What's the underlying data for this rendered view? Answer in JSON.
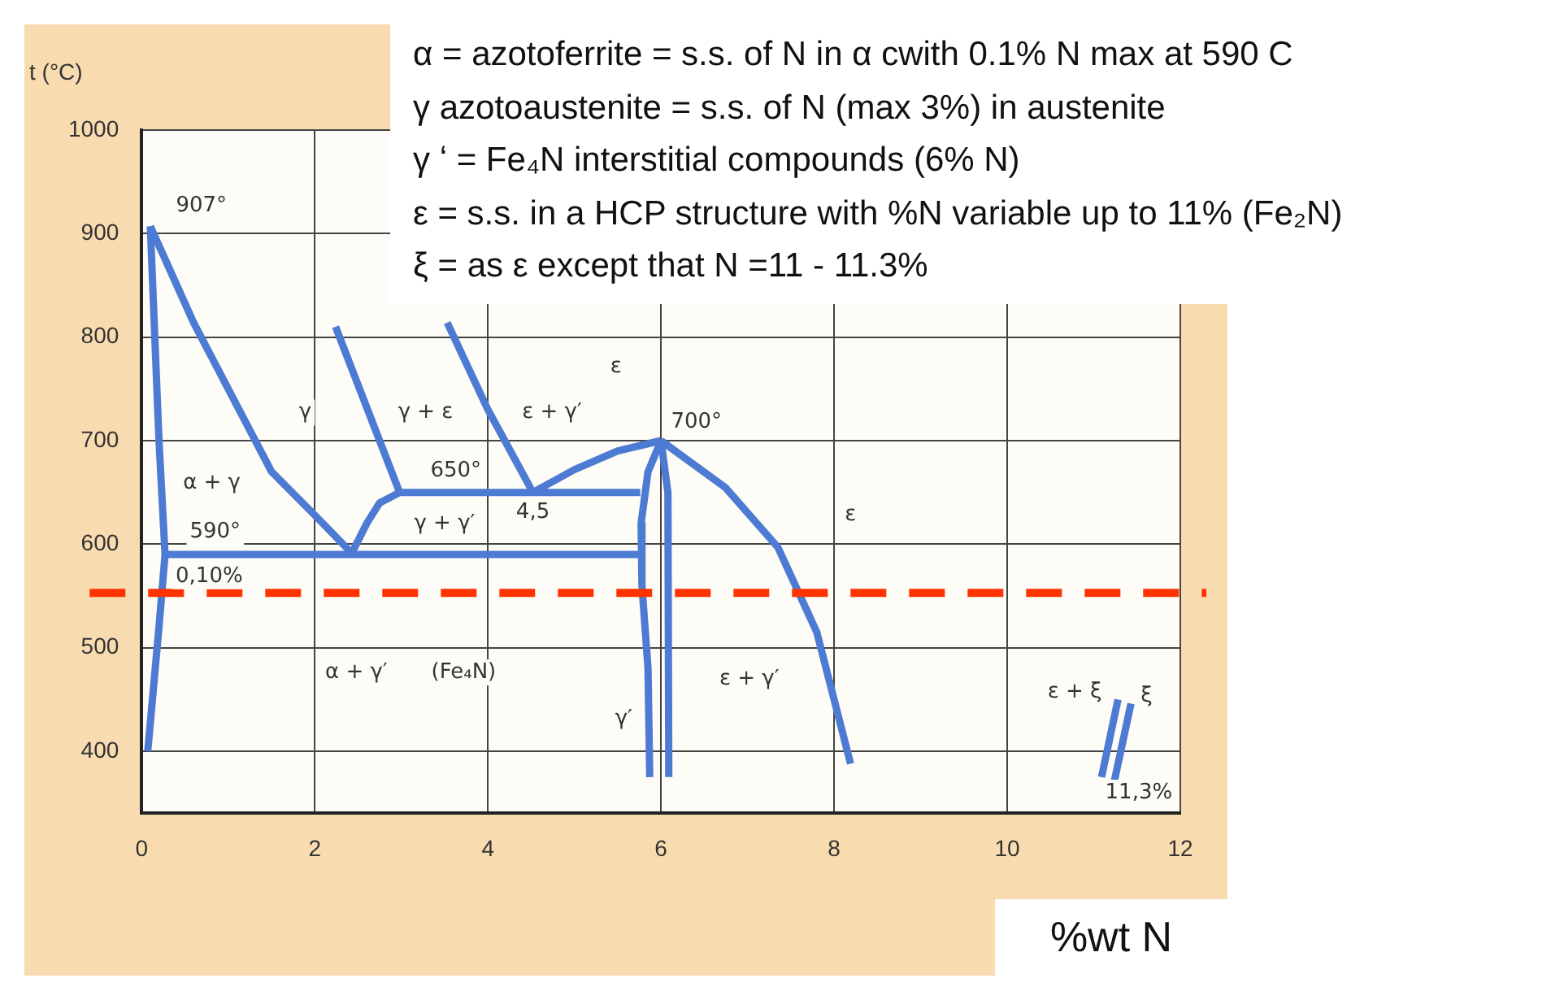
{
  "chart_data": {
    "type": "line",
    "xlabel": "%wt N",
    "ylabel": "t (°C)",
    "xlim": [
      0,
      12
    ],
    "ylim": [
      340,
      1000
    ],
    "xticks": [
      0,
      2,
      4,
      6,
      8,
      10,
      12
    ],
    "yticks": [
      400,
      500,
      600,
      700,
      800,
      900,
      1000
    ],
    "grid": true,
    "marker": "none",
    "line_style": "solid",
    "series": [
      {
        "color": "#4d7bd3",
        "x": [
          0.07,
          0.2,
          0.27,
          0.2,
          0.1
        ],
        "values": [
          400,
          520,
          590,
          700,
          907
        ]
      },
      {
        "color": "#4d7bd3",
        "x": [
          0.1,
          0.6,
          1.0,
          1.5,
          2.0,
          2.42
        ],
        "values": [
          907,
          814,
          750,
          670,
          628,
          592
        ]
      },
      {
        "color": "#4d7bd3",
        "x": [
          0.27,
          5.76
        ],
        "values": [
          590,
          590
        ]
      },
      {
        "color": "#4d7bd3",
        "x": [
          2.42,
          2.6,
          2.75,
          2.98
        ],
        "values": [
          590,
          620,
          640,
          650
        ]
      },
      {
        "color": "#4d7bd3",
        "x": [
          2.24,
          2.98
        ],
        "values": [
          810,
          650
        ]
      },
      {
        "color": "#4d7bd3",
        "x": [
          2.98,
          5.76
        ],
        "values": [
          650,
          650
        ]
      },
      {
        "color": "#4d7bd3",
        "x": [
          3.53,
          4.0,
          4.52
        ],
        "values": [
          814,
          730,
          650
        ]
      },
      {
        "color": "#4d7bd3",
        "x": [
          4.52,
          5.0,
          5.5,
          6.0
        ],
        "values": [
          650,
          672,
          690,
          700
        ]
      },
      {
        "color": "#4d7bd3",
        "x": [
          6.0,
          5.85,
          5.77,
          5.78,
          5.85,
          5.87
        ],
        "values": [
          700,
          670,
          620,
          560,
          480,
          375
        ]
      },
      {
        "color": "#4d7bd3",
        "x": [
          6.0,
          6.08,
          6.09
        ],
        "values": [
          700,
          650,
          375
        ]
      },
      {
        "color": "#4d7bd3",
        "x": [
          6.0,
          6.74,
          7.35,
          7.8,
          8.19
        ],
        "values": [
          700,
          655,
          597,
          515,
          388
        ]
      },
      {
        "color": "#4d7bd3",
        "x": [
          11.28,
          11.09
        ],
        "values": [
          450,
          375
        ]
      },
      {
        "color": "#4d7bd3",
        "x": [
          11.43,
          11.24
        ],
        "values": [
          446,
          372
        ]
      }
    ],
    "ref_lines": [
      {
        "axis": "y",
        "value": 553,
        "color": "#ff3300",
        "line_style": "dashed"
      }
    ],
    "annotations": [
      "α = azotoferrite  = s.s. of N in α cwith 0.1% N max at 590 C",
      "γ  azotoaustenite = s.s. of N (max 3%) in austenite",
      "γ ʻ = Fe₄N  interstitial compounds (6% N)",
      "ε = s.s. in a HCP structure with %N variable up to 11% (Fe₂N)",
      "ξ  = as ε except that N =11 - 11.3%",
      "907°",
      "γ",
      "γ + ε",
      "ε",
      "ε + γ′",
      "700°",
      "α + γ",
      "650°",
      "4,5",
      "γ + γ′",
      "590°",
      "0,10%",
      "ε",
      "α + γ′",
      "(Fe₄N)",
      "γ′",
      "ε + γ′",
      "ε + ξ",
      "ξ",
      "11,3%"
    ]
  }
}
